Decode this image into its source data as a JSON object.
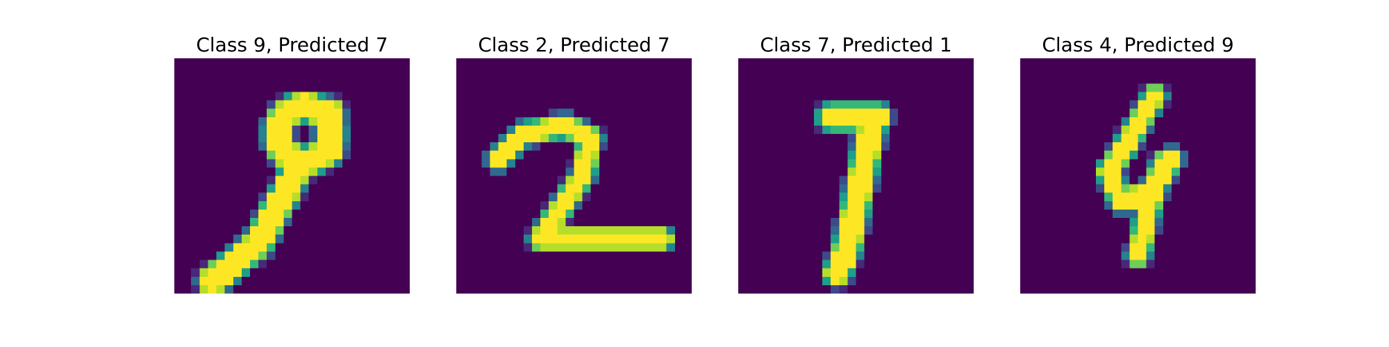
{
  "colors": {
    "background": "#440154",
    "viridis": [
      "#440154",
      "#482878",
      "#3e4989",
      "#31688e",
      "#26828e",
      "#1f9e89",
      "#35b779",
      "#6ece58",
      "#b5de2b",
      "#fde725"
    ]
  },
  "panels": [
    {
      "title": "Class 9, Predicted 7",
      "digit": "9"
    },
    {
      "title": "Class 2, Predicted 7",
      "digit": "2"
    },
    {
      "title": "Class 7, Predicted 1",
      "digit": "7"
    },
    {
      "title": "Class 4, Predicted 9",
      "digit": "4"
    }
  ]
}
